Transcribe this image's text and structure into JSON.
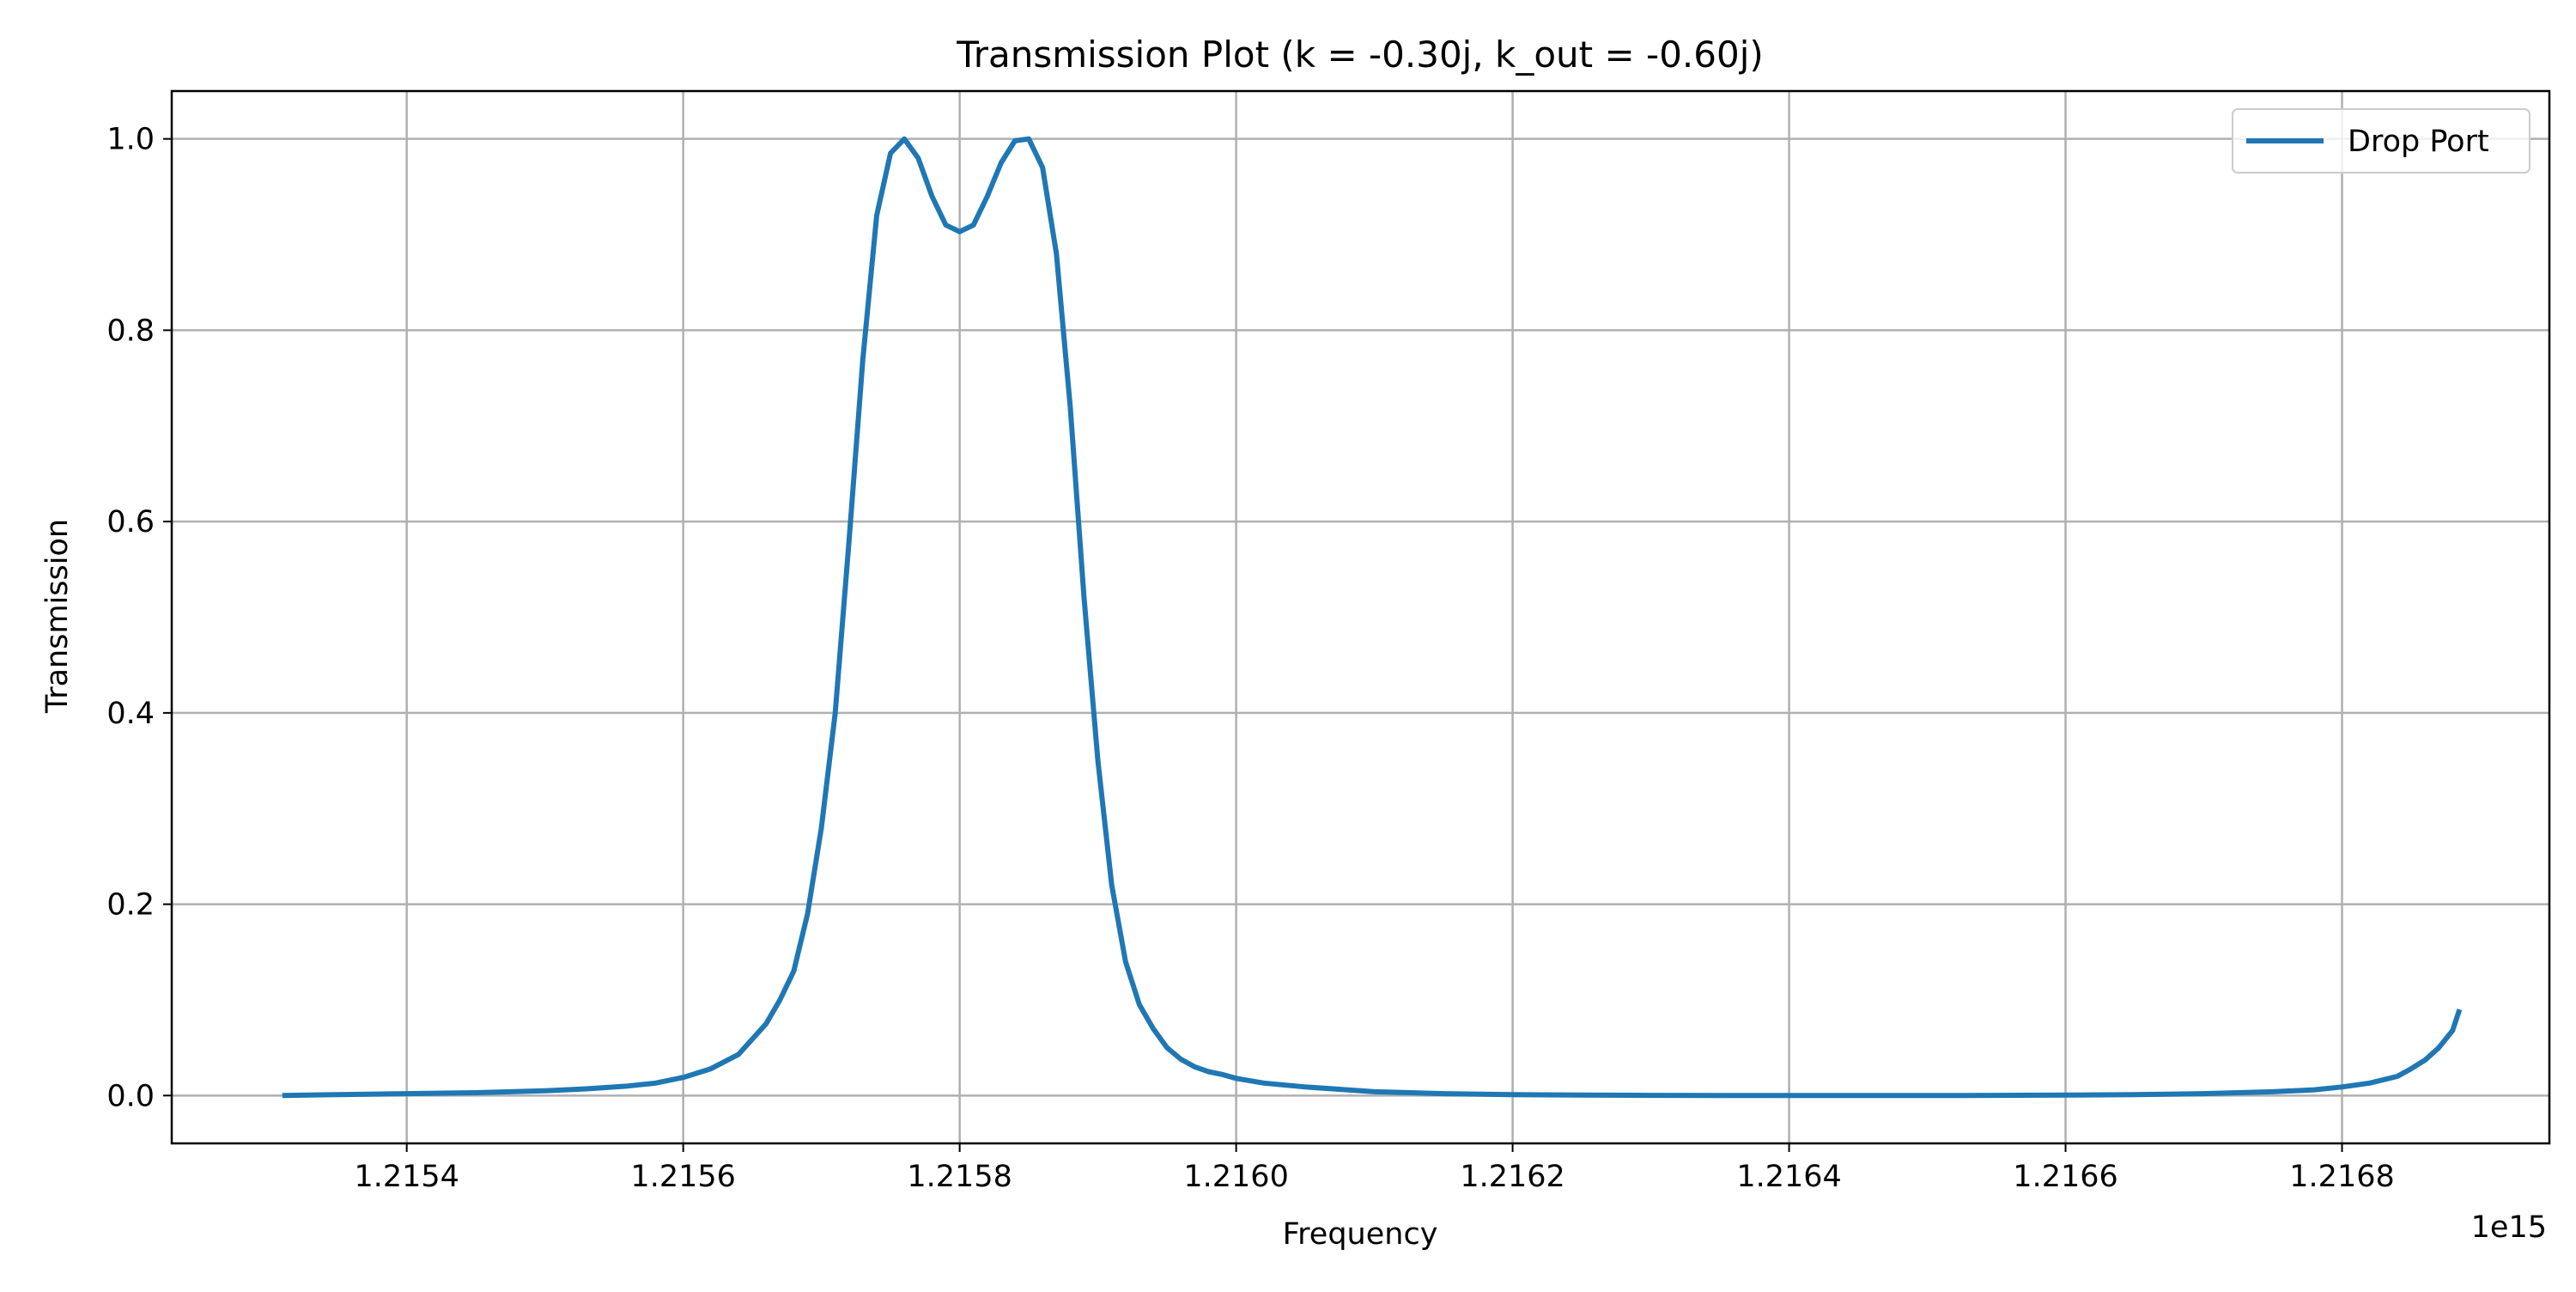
{
  "chart_data": {
    "type": "line",
    "title": "Transmission Plot (k = -0.30j, k_out = -0.60j)",
    "xlabel": "Frequency",
    "ylabel": "Transmission",
    "x_offset_label": "1e15",
    "xlim": [
      1.21523,
      1.21695
    ],
    "ylim": [
      -0.05,
      1.05
    ],
    "x_ticks": [
      1.2154,
      1.2156,
      1.2158,
      1.216,
      1.2162,
      1.2164,
      1.2166,
      1.2168
    ],
    "x_tick_labels": [
      "1.2154",
      "1.2156",
      "1.2158",
      "1.2160",
      "1.2162",
      "1.2164",
      "1.2166",
      "1.2168"
    ],
    "y_ticks": [
      0.0,
      0.2,
      0.4,
      0.6,
      0.8,
      1.0
    ],
    "y_tick_labels": [
      "0.0",
      "0.2",
      "0.4",
      "0.6",
      "0.8",
      "1.0"
    ],
    "grid": true,
    "legend_position": "top-right",
    "series": [
      {
        "name": "Drop Port",
        "color": "#1f77b4",
        "x": [
          1.21531,
          1.21535,
          1.2154,
          1.21545,
          1.2155,
          1.21553,
          1.21556,
          1.21558,
          1.2156,
          1.21562,
          1.21564,
          1.21566,
          1.21567,
          1.21568,
          1.21569,
          1.2157,
          1.21571,
          1.21572,
          1.21573,
          1.21574,
          1.21575,
          1.21576,
          1.21577,
          1.21578,
          1.21579,
          1.2158,
          1.21581,
          1.21582,
          1.21583,
          1.21584,
          1.21585,
          1.21586,
          1.21587,
          1.21588,
          1.21589,
          1.2159,
          1.21591,
          1.21592,
          1.21593,
          1.21594,
          1.21595,
          1.21596,
          1.21597,
          1.21598,
          1.21599,
          1.216,
          1.21602,
          1.21605,
          1.21608,
          1.2161,
          1.21615,
          1.2162,
          1.21625,
          1.2163,
          1.21635,
          1.2164,
          1.21645,
          1.2165,
          1.21655,
          1.2166,
          1.21665,
          1.2167,
          1.21675,
          1.21678,
          1.2168,
          1.21682,
          1.21684,
          1.21685,
          1.21686,
          1.21687,
          1.21688,
          1.216885
        ],
        "y": [
          0.0,
          0.001,
          0.002,
          0.003,
          0.005,
          0.007,
          0.01,
          0.013,
          0.019,
          0.028,
          0.043,
          0.075,
          0.1,
          0.13,
          0.19,
          0.28,
          0.4,
          0.58,
          0.77,
          0.92,
          0.985,
          1.0,
          0.98,
          0.94,
          0.91,
          0.903,
          0.91,
          0.94,
          0.975,
          0.998,
          1.0,
          0.97,
          0.88,
          0.72,
          0.52,
          0.35,
          0.22,
          0.14,
          0.095,
          0.07,
          0.05,
          0.038,
          0.03,
          0.025,
          0.022,
          0.018,
          0.013,
          0.009,
          0.006,
          0.004,
          0.002,
          0.001,
          0.0005,
          0.0002,
          0.0,
          0.0,
          0.0,
          0.0,
          0.0002,
          0.0005,
          0.001,
          0.002,
          0.004,
          0.006,
          0.009,
          0.013,
          0.02,
          0.028,
          0.037,
          0.05,
          0.068,
          0.09
        ]
      }
    ]
  }
}
